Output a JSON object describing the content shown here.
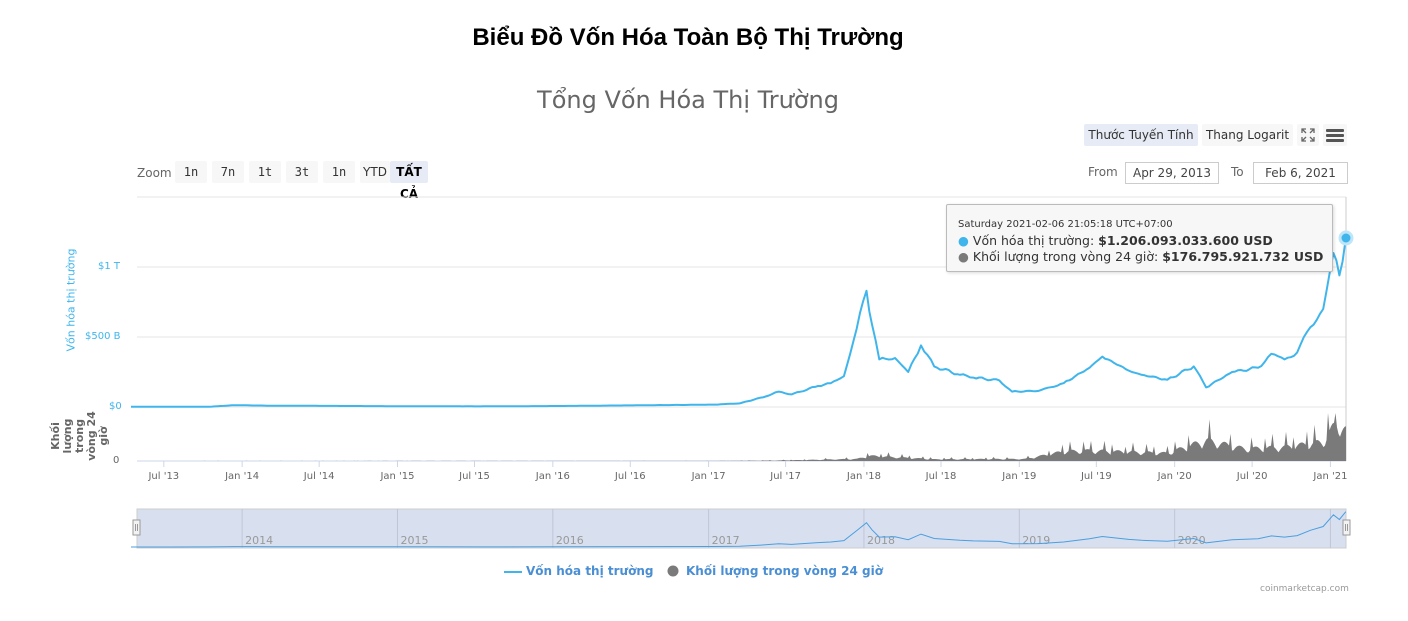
{
  "page_title": "Biểu Đồ Vốn Hóa Toàn Bộ Thị Trường",
  "chart": {
    "title": "Tổng Vốn Hóa Thị Trường",
    "toolbar": {
      "linear_label": "Thước Tuyến Tính",
      "log_label": "Thang Logarit",
      "fullscreen_icon": "fullscreen-icon",
      "menu_icon": "hamburger-menu-icon"
    },
    "range_selector": {
      "zoom_label": "Zoom",
      "buttons": [
        "1n",
        "7n",
        "1t",
        "3t",
        "1n",
        "YTD",
        "TẤT CẢ"
      ],
      "active": "TẤT CẢ",
      "from_label": "From",
      "from_value": "Apr 29, 2013",
      "to_label": "To",
      "to_value": "Feb 6, 2021"
    },
    "y_axis_main": {
      "title": "Vốn hóa thị trường",
      "ticks": [
        "$1 T",
        "$500 B",
        "$0"
      ]
    },
    "y_axis_volume": {
      "title": "Khối lượng trong vòng 24 giờ",
      "ticks": [
        "0"
      ]
    },
    "x_axis_ticks": [
      "Jul '13",
      "Jan '14",
      "Jul '14",
      "Jan '15",
      "Jul '15",
      "Jan '16",
      "Jul '16",
      "Jan '17",
      "Jul '17",
      "Jan '18",
      "Jul '18",
      "Jan '19",
      "Jul '19",
      "Jan '20",
      "Jul '20",
      "Jan '21"
    ],
    "navigator_ticks": [
      "2014",
      "2015",
      "2016",
      "2017",
      "2018",
      "2019",
      "2020"
    ],
    "tooltip": {
      "header": "Saturday 2021-02-06 21:05:18 UTC+07:00",
      "series1_label": "Vốn hóa thị trường: ",
      "series1_value": "$1.206.093.033.600 USD",
      "series2_label": "Khối lượng trong vòng 24 giờ: ",
      "series2_value": "$176.795.921.732 USD"
    },
    "legend": {
      "series1": "Vốn hóa thị trường",
      "series2": "Khối lượng trong vòng 24 giờ"
    },
    "credit": "coinmarketcap.com",
    "colors": {
      "market_cap": "#3fb5ec",
      "volume": "#7a7a7a",
      "navigator_bg": "#d8dfef",
      "active_button": "#e6ebf5"
    }
  },
  "chart_data": {
    "type": "line",
    "title": "Tổng Vốn Hóa Thị Trường",
    "xlabel": "",
    "ylabel": "Vốn hóa thị trường",
    "ylim": [
      0,
      1500000000000
    ],
    "x_range": [
      "2013-04-29",
      "2021-02-06"
    ],
    "grid": true,
    "legend_position": "bottom",
    "series": [
      {
        "name": "Vốn hóa thị trường",
        "unit": "USD",
        "type": "line",
        "x": [
          "2013-04",
          "2013-07",
          "2013-10",
          "2013-12",
          "2014-03",
          "2014-07",
          "2015-01",
          "2015-07",
          "2016-01",
          "2016-07",
          "2017-01",
          "2017-03",
          "2017-05",
          "2017-06",
          "2017-07",
          "2017-09",
          "2017-10",
          "2017-11",
          "2017-12",
          "2018-01-07",
          "2018-01-20",
          "2018-02-06",
          "2018-03",
          "2018-04",
          "2018-05",
          "2018-06",
          "2018-08",
          "2018-09",
          "2018-11",
          "2018-12",
          "2019-02",
          "2019-04",
          "2019-06",
          "2019-07",
          "2019-09",
          "2019-10",
          "2019-12",
          "2020-02",
          "2020-03",
          "2020-05",
          "2020-07",
          "2020-08",
          "2020-09",
          "2020-10",
          "2020-11",
          "2020-12",
          "2021-01-08",
          "2021-01-22",
          "2021-02-06"
        ],
        "values": [
          1500000000.0,
          1400000000.0,
          2000000000.0,
          13000000000.0,
          9000000000.0,
          8000000000.0,
          5500000000.0,
          4500000000.0,
          7000000000.0,
          12000000000.0,
          17000000000.0,
          26000000000.0,
          75000000000.0,
          110000000000.0,
          90000000000.0,
          150000000000.0,
          170000000000.0,
          220000000000.0,
          560000000000.0,
          830000000000.0,
          590000000000.0,
          340000000000.0,
          350000000000.0,
          250000000000.0,
          440000000000.0,
          290000000000.0,
          230000000000.0,
          210000000000.0,
          190000000000.0,
          110000000000.0,
          115000000000.0,
          170000000000.0,
          280000000000.0,
          360000000000.0,
          260000000000.0,
          230000000000.0,
          195000000000.0,
          290000000000.0,
          140000000000.0,
          250000000000.0,
          280000000000.0,
          380000000000.0,
          340000000000.0,
          390000000000.0,
          570000000000.0,
          700000000000.0,
          1100000000000.0,
          940000000000.0,
          1206000000000.0
        ]
      },
      {
        "name": "Khối lượng trong vòng 24 giờ",
        "unit": "USD",
        "type": "column",
        "x": [
          "2013-04",
          "2017-01",
          "2017-06",
          "2017-12",
          "2018-01",
          "2018-06",
          "2019-01",
          "2019-04",
          "2019-06",
          "2019-12",
          "2020-03",
          "2020-06",
          "2020-09",
          "2020-12",
          "2021-01",
          "2021-02-06"
        ],
        "values": [
          100000000.0,
          500000000.0,
          3000000000.0,
          12000000000.0,
          30000000000.0,
          10000000000.0,
          12000000000.0,
          55000000000.0,
          60000000000.0,
          45000000000.0,
          120000000000.0,
          70000000000.0,
          80000000000.0,
          110000000000.0,
          220000000000.0,
          176800000000.0
        ]
      }
    ],
    "tooltip_point": {
      "date": "2021-02-06 21:05:18",
      "market_cap": 1206093033600,
      "volume_24h": 176795921732
    }
  }
}
